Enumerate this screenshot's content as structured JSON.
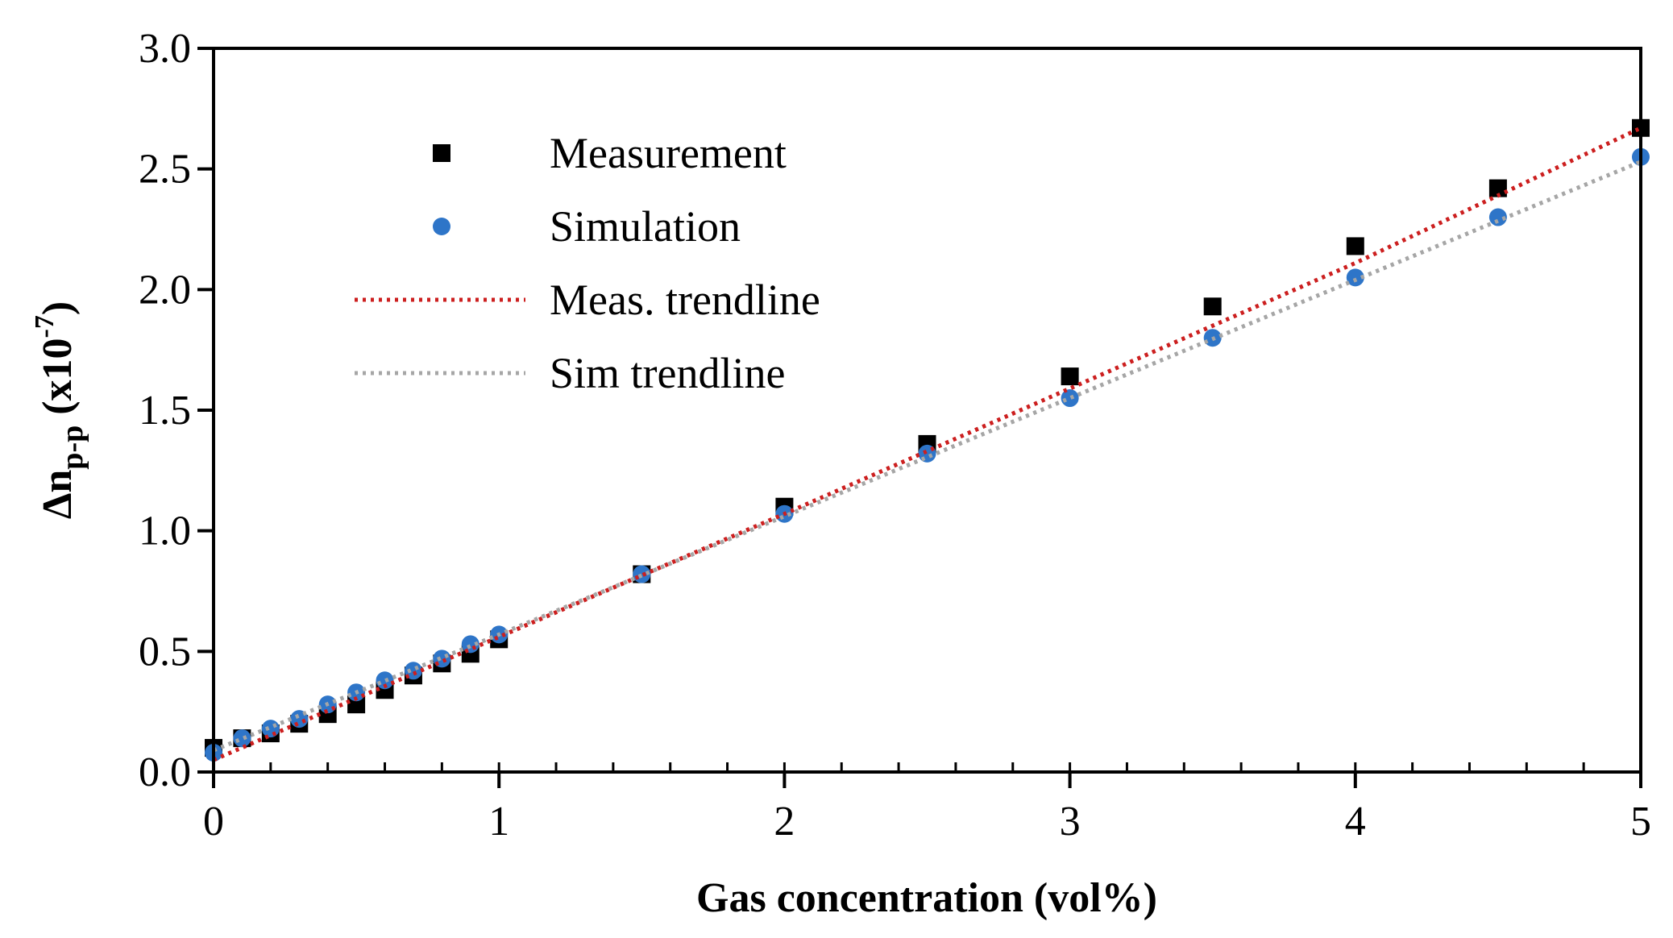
{
  "chart_data": {
    "type": "scatter",
    "title": "",
    "xlabel": "Gas concentration (vol%)",
    "ylabel_main": "Δn",
    "ylabel_subscript": "p-p",
    "ylabel_unit_prefix": " (x10",
    "ylabel_unit_exponent": "-7",
    "ylabel_unit_suffix": ")",
    "xlim": [
      0,
      5
    ],
    "ylim": [
      0,
      3
    ],
    "xticks": [
      0,
      1,
      2,
      3,
      4,
      5
    ],
    "xtick_labels": [
      "0",
      "1",
      "2",
      "3",
      "4",
      "5"
    ],
    "x_minor_step": 0.2,
    "yticks": [
      0,
      0.5,
      1,
      1.5,
      2,
      2.5,
      3
    ],
    "ytick_labels": [
      "0.0",
      "0.5",
      "1.0",
      "1.5",
      "2.0",
      "2.5",
      "3.0"
    ],
    "grid": false,
    "legend_position": "top-left",
    "series": [
      {
        "name": "Measurement",
        "kind": "marker-square",
        "color": "#000000",
        "x": [
          0,
          0.1,
          0.2,
          0.3,
          0.4,
          0.5,
          0.6,
          0.7,
          0.8,
          0.9,
          1.0,
          1.5,
          2.0,
          2.5,
          3.0,
          3.5,
          4.0,
          4.5,
          5.0
        ],
        "y": [
          0.1,
          0.14,
          0.16,
          0.2,
          0.24,
          0.28,
          0.34,
          0.4,
          0.45,
          0.49,
          0.55,
          0.82,
          1.1,
          1.36,
          1.64,
          1.93,
          2.18,
          2.42,
          2.67
        ]
      },
      {
        "name": "Simulation",
        "kind": "marker-circle",
        "color": "#2e75c8",
        "x": [
          0,
          0.1,
          0.2,
          0.3,
          0.4,
          0.5,
          0.6,
          0.7,
          0.8,
          0.9,
          1.0,
          1.5,
          2.0,
          2.5,
          3.0,
          3.5,
          4.0,
          4.5,
          5.0
        ],
        "y": [
          0.08,
          0.14,
          0.18,
          0.22,
          0.28,
          0.33,
          0.38,
          0.42,
          0.47,
          0.53,
          0.57,
          0.82,
          1.07,
          1.32,
          1.55,
          1.8,
          2.05,
          2.3,
          2.55
        ]
      },
      {
        "name": "Meas. trendline",
        "kind": "line-dotted",
        "color": "#cc1f1f",
        "x": [
          0,
          1,
          2,
          3,
          4,
          5
        ],
        "y": [
          0.05,
          0.56,
          1.07,
          1.59,
          2.11,
          2.67
        ]
      },
      {
        "name": "Sim trendline",
        "kind": "line-dotted",
        "color": "#a6a6a6",
        "x": [
          0,
          1,
          2,
          3,
          4,
          5
        ],
        "y": [
          0.09,
          0.57,
          1.06,
          1.55,
          2.04,
          2.53
        ]
      }
    ]
  }
}
